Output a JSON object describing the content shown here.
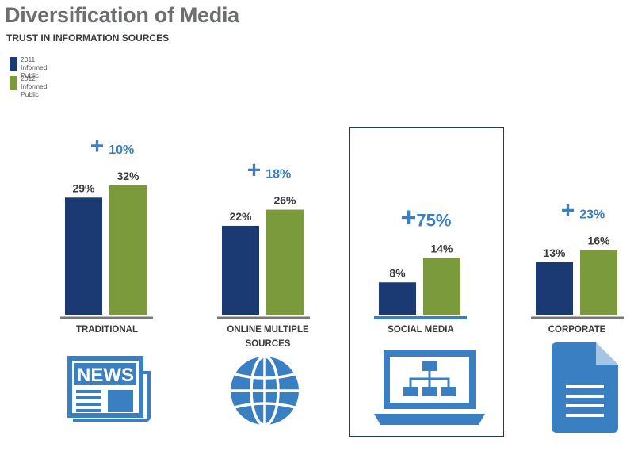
{
  "title": "Diversification of Media",
  "subtitle": "TRUST IN INFORMATION SOURCES",
  "legend": [
    {
      "label": "2011\nInformed Public",
      "color": "#1b3a73"
    },
    {
      "label": "2012\nInformed Public",
      "color": "#7b9a3c"
    }
  ],
  "colors": {
    "bar_2011": "#1b3a73",
    "bar_2012": "#7b9a3c",
    "accent": "#3a7fc1",
    "axis": "#777777"
  },
  "chart_data": {
    "type": "bar",
    "title": "Diversification of Media",
    "subtitle": "TRUST IN INFORMATION SOURCES",
    "categories": [
      "TRADITIONAL",
      "ONLINE MULTIPLE SOURCES",
      "SOCIAL MEDIA",
      "CORPORATE"
    ],
    "series": [
      {
        "name": "2011 Informed Public",
        "values": [
          29,
          22,
          8,
          13
        ],
        "labels": [
          "29%",
          "22%",
          "8%",
          "13%"
        ]
      },
      {
        "name": "2012 Informed Public",
        "values": [
          32,
          26,
          14,
          16
        ],
        "labels": [
          "32%",
          "26%",
          "14%",
          "16%"
        ]
      }
    ],
    "changes": [
      {
        "sign": "+",
        "value": "10%"
      },
      {
        "sign": "+",
        "value": "18%"
      },
      {
        "sign": "+",
        "value": "75%"
      },
      {
        "sign": "+",
        "value": "23%"
      }
    ],
    "ylim": [
      0,
      32
    ],
    "highlighted_category": "SOCIAL MEDIA"
  },
  "icons": [
    "newspaper-icon",
    "globe-icon",
    "laptop-network-icon",
    "document-icon"
  ],
  "icon_text": {
    "news": "NEWS"
  }
}
